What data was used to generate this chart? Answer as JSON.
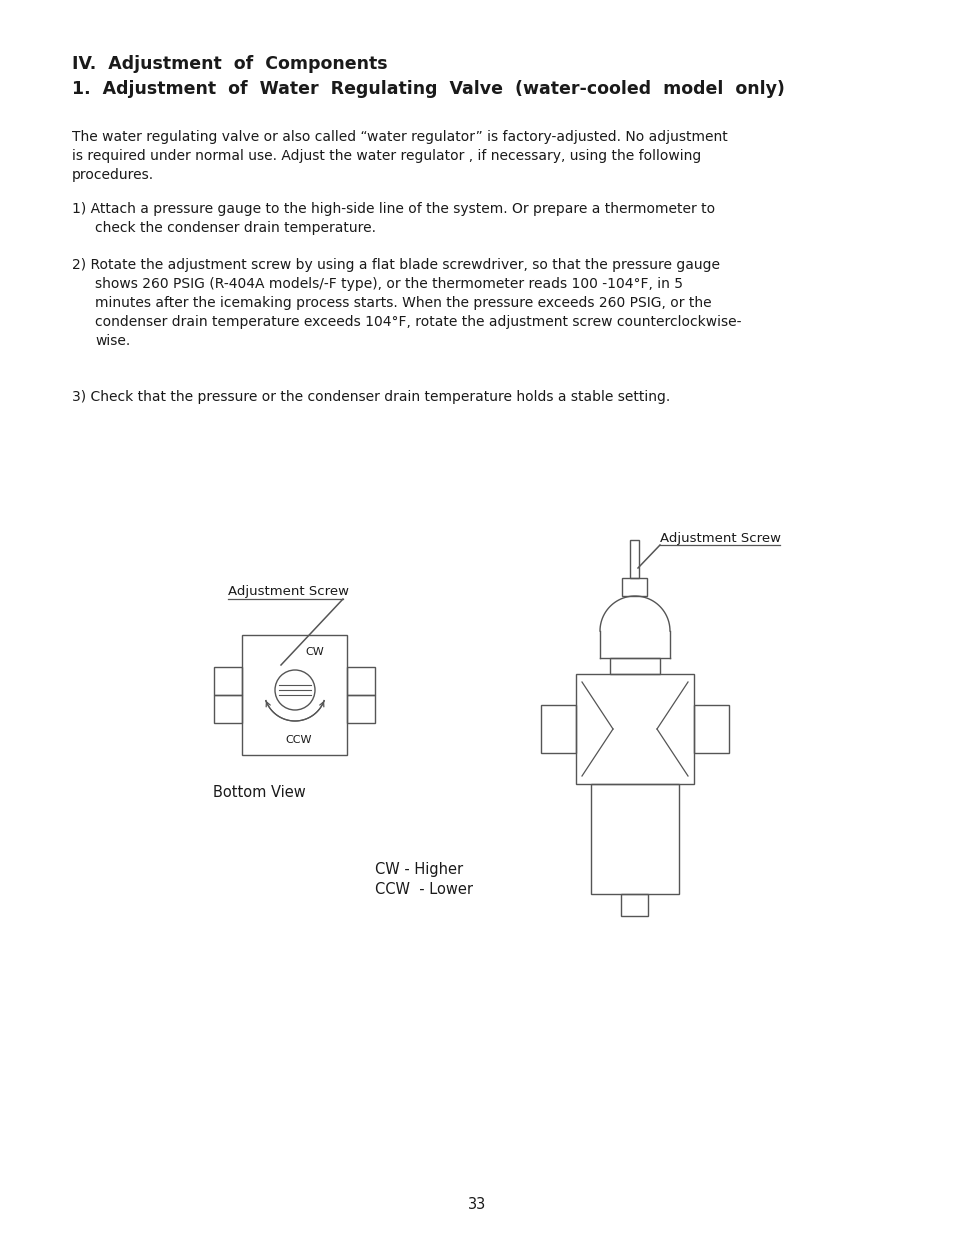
{
  "title1": "IV.  Adjustment  of  Components",
  "title2": "1.  Adjustment  of  Water  Regulating  Valve  (water-cooled  model  only)",
  "para1_lines": [
    "The water regulating valve or also called “water regulator” is factory-adjusted. No adjustment",
    "is required under normal use. Adjust the water regulator , if necessary, using the following",
    "procedures."
  ],
  "item1_line1": "1) Attach a pressure gauge to the high-side line of the system. Or prepare a thermometer to",
  "item1_line2": "check the condenser drain temperature.",
  "item2_lines": [
    "2) Rotate the adjustment screw by using a flat blade screwdriver, so that the pressure gauge",
    "shows 260 PSIG (R-404A models/-F type), or the thermometer reads 100 -104°F, in 5",
    "minutes after the icemaking process starts. When the pressure exceeds 260 PSIG, or the",
    "condenser drain temperature exceeds 104°F, rotate the adjustment screw counterclockwise-",
    "wise."
  ],
  "item3_line": "3) Check that the pressure or the condenser drain temperature holds a stable setting.",
  "label_adj_screw_left": "Adjustment Screw",
  "label_adj_screw_right": "Adjustment Screw",
  "label_cw": "CW",
  "label_ccw": "CCW",
  "label_bottom_view": "Bottom View",
  "label_cw_higher": "CW - Higher",
  "label_ccw_lower": "CCW  - Lower",
  "page_number": "33",
  "bg_color": "#ffffff",
  "text_color": "#1a1a1a",
  "line_color": "#555555"
}
